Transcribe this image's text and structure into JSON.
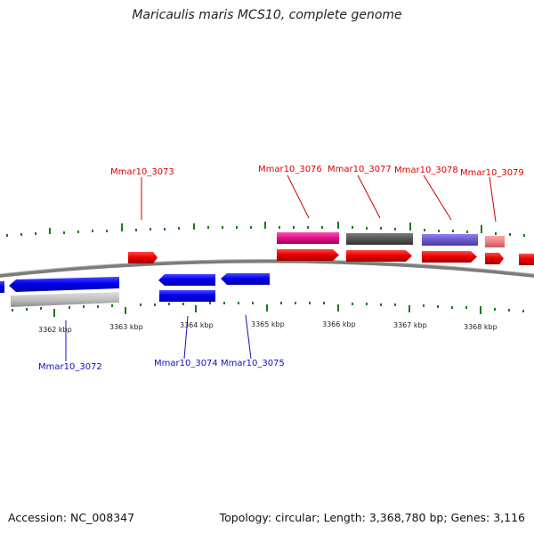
{
  "title": "Maricaulis maris MCS10, complete genome",
  "footer": {
    "accession": "Accession: NC_008347",
    "summary": "Topology: circular; Length: 3,368,780 bp; Genes: 3,116"
  },
  "ruler": {
    "tick_labels": [
      "3362 kbp",
      "3363 kbp",
      "3364 kbp",
      "3365 kbp",
      "3366 kbp",
      "3367 kbp",
      "3368 kbp"
    ]
  },
  "genes": {
    "forward_labels": [
      "Mmar10_3073",
      "Mmar10_3076",
      "Mmar10_3077",
      "Mmar10_3078",
      "Mmar10_3079"
    ],
    "reverse_labels": [
      "Mmar10_3072",
      "Mmar10_3074",
      "Mmar10_3075"
    ]
  },
  "colors": {
    "forward_gene": "#e00000",
    "reverse_gene": "#0000e0",
    "backbone": "#808080",
    "ticks": "#1a7a1a",
    "magenta_feature": "#e0108a",
    "dark_gray_feature": "#555555",
    "purple_feature": "#6a5acd",
    "pink_feature": "#f08080",
    "light_gray_feature": "#c0c0c0"
  }
}
